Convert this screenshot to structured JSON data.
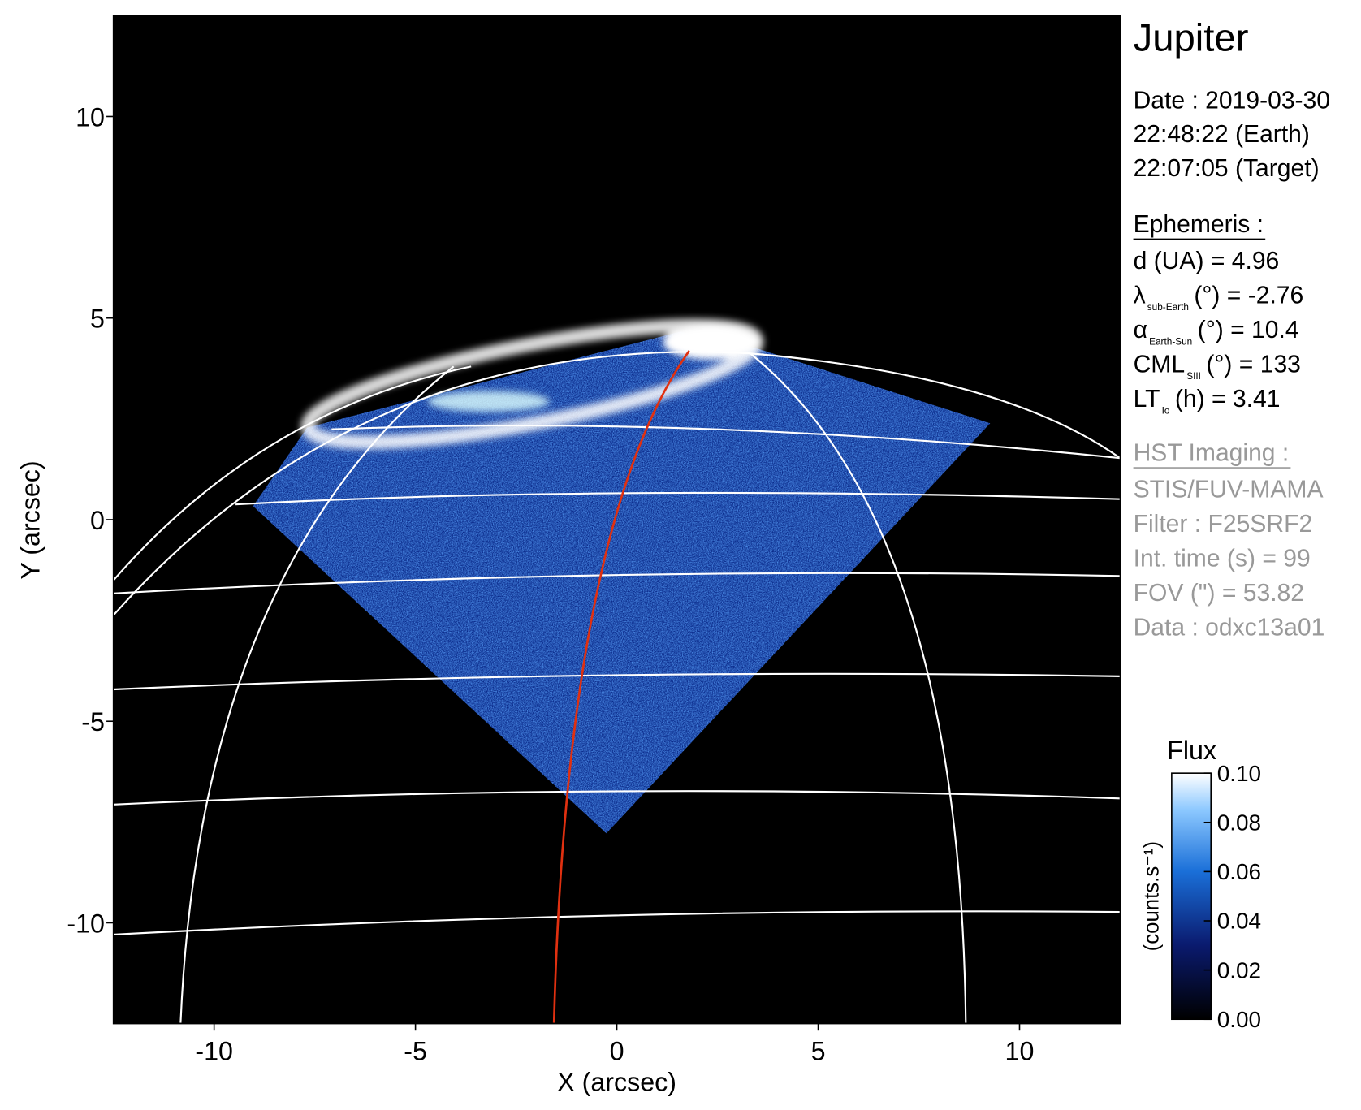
{
  "chart_data": {
    "type": "image",
    "xlabel": "X (arcsec)",
    "ylabel": "Y (arcsec)",
    "xlim": [
      -12.5,
      12.5
    ],
    "ylim": [
      -12.5,
      12.5
    ],
    "xticks": [
      -10,
      -5,
      0,
      5,
      10
    ],
    "yticks": [
      -10,
      -5,
      0,
      5,
      10
    ],
    "colorbar": {
      "title": "Flux",
      "label": "(counts.s⁻¹)",
      "lim": [
        0,
        0.1
      ],
      "ticks": [
        {
          "value": 0,
          "label": "0.00"
        },
        0.02,
        0.04,
        0.06,
        0.08,
        {
          "value": 0.1,
          "label": "0.10"
        }
      ]
    }
  },
  "panel": {
    "title": "Jupiter",
    "date": [
      "Date : 2019-03-30",
      "22:48:22 (Earth)",
      "22:07:05 (Target)"
    ],
    "ephemeris": {
      "heading": "Ephemeris :",
      "items": [
        {
          "text": "d (UA)    = 4.96"
        },
        {
          "text": "λ",
          "sub": "sub-Earth",
          "after": "(°) = -2.76"
        },
        {
          "text": "α",
          "sub": "Earth-Sun",
          "after": "(°) = 10.4"
        },
        {
          "text": "CML",
          "sub": "SIII",
          "after": "(°) = 133"
        },
        {
          "text": "LT",
          "sub": "Io",
          "after": "(h) = 3.41"
        }
      ]
    },
    "imaging": {
      "heading": "HST Imaging :",
      "items": [
        "STIS/FUV-MAMA",
        "Filter : F25SRF2",
        "Int. time (s) = 99",
        "FOV (\") = 53.82",
        "Data : odxc13a01"
      ]
    }
  }
}
